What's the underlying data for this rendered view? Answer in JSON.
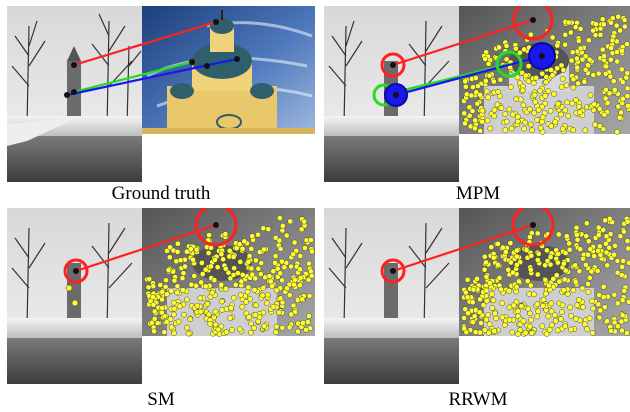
{
  "figure": {
    "captions": {
      "ground_truth": "Ground truth",
      "mpm": "MPM",
      "sm": "SM",
      "rrwm": "RRWM"
    }
  },
  "colors": {
    "match_red": "#ff2020",
    "match_green": "#22dd22",
    "match_blue": "#1818ee",
    "keypoint_yellow": "#ffff30",
    "keypoint_dark": "#111111"
  }
}
